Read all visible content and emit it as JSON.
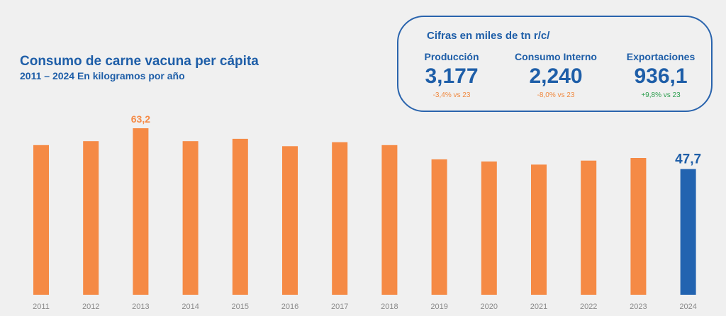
{
  "header": {
    "title": "Consumo de carne vacuna per cápita",
    "subtitle": "2011 – 2024 En kilogramos por año"
  },
  "stats": {
    "heading": "Cifras en miles de tn r/c/",
    "items": [
      {
        "label": "Producción",
        "value": "3,177",
        "change": "-3,4% vs 23",
        "change_color": "#f0883e"
      },
      {
        "label": "Consumo Interno",
        "value": "2,240",
        "change": "-8,0% vs 23",
        "change_color": "#f0883e"
      },
      {
        "label": "Exportaciones",
        "value": "936,1",
        "change": "+9,8% vs 23",
        "change_color": "#2e9e4f"
      }
    ]
  },
  "colors": {
    "bar_default": "#f58a45",
    "bar_highlight": "#2263b0",
    "label_default": "#f58a45",
    "label_highlight": "#1e5ea8",
    "axis_tick": "#8a8a8a"
  },
  "chart_data": {
    "type": "bar",
    "categories": [
      "2011",
      "2012",
      "2013",
      "2014",
      "2015",
      "2016",
      "2017",
      "2018",
      "2019",
      "2020",
      "2021",
      "2022",
      "2023",
      "2024"
    ],
    "values": [
      56.8,
      58.3,
      63.2,
      58.3,
      59.2,
      56.4,
      57.9,
      56.8,
      51.4,
      50.6,
      49.4,
      50.9,
      51.9,
      47.7
    ],
    "data_labels": {
      "2013": "63,2",
      "2024": "47,7"
    },
    "highlight": "2024",
    "ylim": [
      0,
      63.2
    ],
    "grid": false,
    "legend": "none"
  }
}
